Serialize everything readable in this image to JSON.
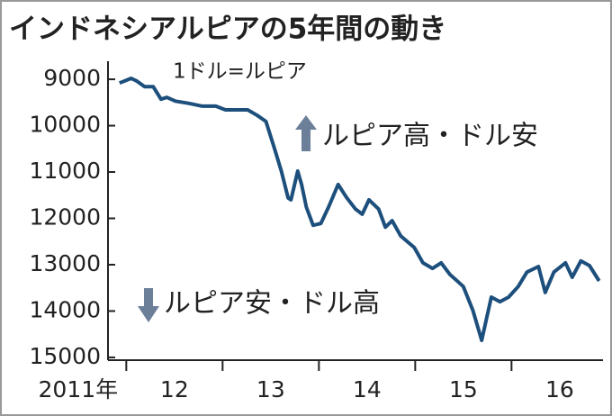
{
  "chart_data": {
    "type": "line",
    "title": "インドネシアルピアの5年間の動き",
    "annotations": [
      "1ドル=ルピア",
      "ルピア高・ドル安",
      "ルピア安・ドル高"
    ],
    "color": "#1d4f7c",
    "x": [
      2011.93,
      2012.05,
      2012.11,
      2012.19,
      2012.28,
      2012.36,
      2012.42,
      2012.51,
      2012.65,
      2012.79,
      2012.93,
      2013.03,
      2013.14,
      2013.26,
      2013.36,
      2013.45,
      2013.54,
      2013.61,
      2013.68,
      2013.71,
      2013.78,
      2013.82,
      2013.87,
      2013.94,
      2014.02,
      2014.1,
      2014.2,
      2014.29,
      2014.38,
      2014.45,
      2014.52,
      2014.62,
      2014.69,
      2014.76,
      2014.85,
      2014.99,
      2015.08,
      2015.18,
      2015.27,
      2015.36,
      2015.5,
      2015.6,
      2015.69,
      2015.79,
      2015.88,
      2015.97,
      2016.07,
      2016.16,
      2016.28,
      2016.35,
      2016.44,
      2016.56,
      2016.63,
      2016.72,
      2016.81,
      2016.91
    ],
    "values": [
      9080,
      8980,
      9040,
      9160,
      9160,
      9430,
      9390,
      9470,
      9520,
      9580,
      9580,
      9660,
      9660,
      9660,
      9780,
      9910,
      10500,
      10980,
      11560,
      11600,
      10980,
      11270,
      11760,
      12150,
      12110,
      11760,
      11270,
      11560,
      11800,
      11910,
      11600,
      11800,
      12190,
      12050,
      12380,
      12630,
      12960,
      13080,
      12960,
      13210,
      13470,
      13990,
      14630,
      13700,
      13800,
      13700,
      13470,
      13160,
      13040,
      13600,
      13160,
      12960,
      13270,
      12920,
      13020,
      13350
    ],
    "xlim": [
      2011.81,
      2016.95
    ],
    "xticks": [
      2012,
      2013,
      2014,
      2015,
      2016
    ],
    "x_labels": [
      {
        "value": 2011.5,
        "label": "2011年"
      },
      {
        "value": 2012.5,
        "label": "12"
      },
      {
        "value": 2013.5,
        "label": "13"
      },
      {
        "value": 2014.5,
        "label": "14"
      },
      {
        "value": 2015.5,
        "label": "15"
      },
      {
        "value": 2016.5,
        "label": "16"
      }
    ],
    "ylim": [
      8610,
      15060
    ],
    "y_inverted": true,
    "yticks": [
      9000,
      10000,
      11000,
      12000,
      13000,
      14000,
      15000
    ]
  }
}
